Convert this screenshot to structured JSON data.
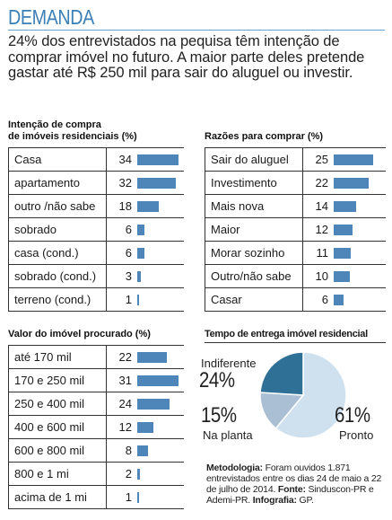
{
  "header": {
    "title": "DEMANDA",
    "lead": "24% dos entrevistados na pequisa têm intenção de comprar imóvel no futuro. A maior parte deles pretende gastar até R$ 250 mil para sair do aluguel ou investir."
  },
  "chart_data": [
    {
      "type": "bar",
      "title": "Intenção de compra de imóveis residenciais (%)",
      "title_lines": [
        "Intenção de compra",
        "de imóveis residenciais (%)"
      ],
      "categories": [
        "Casa",
        "apartamento",
        "outro /não sabe",
        "sobrado",
        "casa (cond.)",
        "sobrado (cond.)",
        "terreno (cond.)"
      ],
      "values": [
        34,
        32,
        18,
        6,
        6,
        3,
        1
      ],
      "xlim": [
        0,
        34
      ]
    },
    {
      "type": "bar",
      "title": "Razões para comprar (%)",
      "title_lines": [
        "Razões para comprar (%)"
      ],
      "categories": [
        "Sair do aluguel",
        "Investimento",
        "Mais nova",
        "Maior",
        "Morar sozinho",
        "Outro/não sabe",
        "Casar"
      ],
      "values": [
        25,
        22,
        14,
        12,
        11,
        10,
        6
      ],
      "xlim": [
        0,
        25
      ]
    },
    {
      "type": "bar",
      "title": "Valor do imóvel procurado (%)",
      "title_lines": [
        "Valor do imóvel procurado (%)"
      ],
      "categories": [
        "até 170 mil",
        "170 e 250 mil",
        "250 e 400 mil",
        "400 e 600 mil",
        "600 e 800 mil",
        "800 e 1 mi",
        "acima de 1 mi"
      ],
      "values": [
        22,
        31,
        24,
        12,
        8,
        2,
        1
      ],
      "xlim": [
        0,
        31
      ]
    },
    {
      "type": "pie",
      "title": "Tempo de entrega imóvel residencial",
      "slices": [
        {
          "name": "Pronto",
          "value": 61,
          "label": "61%",
          "color": "#cfe0ef"
        },
        {
          "name": "Na planta",
          "value": 15,
          "label": "15%",
          "color": "#aabfd3"
        },
        {
          "name": "Indiferente",
          "value": 24,
          "label": "24%",
          "color": "#2f7196"
        }
      ]
    }
  ],
  "note": {
    "metodologia_label": "Metodologia:",
    "metodologia_text": " Foram ouvidos 1.871 entrevistados entre os dias 24 de maio a 22 de julho de 2014.",
    "fonte_label": "Fonte:",
    "fonte_text": " Sinduscon-PR e Ademi-PR.",
    "infografia_label": "Infografia:",
    "infografia_text": " GP."
  },
  "colors": {
    "title": "#3b7fb5",
    "bar": "#4f86b9"
  }
}
